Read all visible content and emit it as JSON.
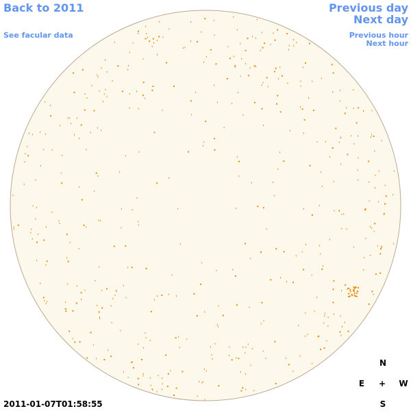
{
  "header": {
    "back_link": "Back to 2011",
    "facular_link": "See facular data",
    "previous_day": "Previous day",
    "next_day": "Next day",
    "previous_hour": "Previous hour",
    "next_hour": "Next hour"
  },
  "timestamp": "2011-01-07T01:58:55",
  "compass": {
    "north": "N",
    "east": "E",
    "center": "+",
    "west": "W",
    "south": "S"
  }
}
